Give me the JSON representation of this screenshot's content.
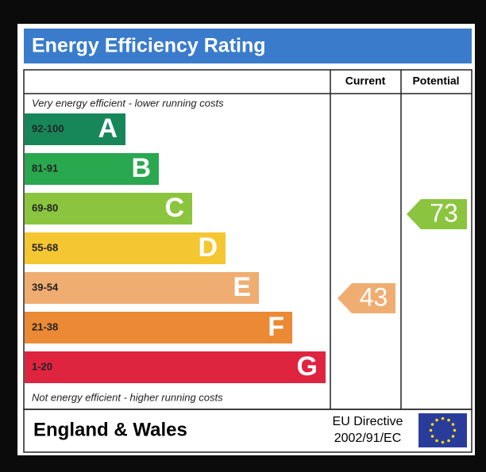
{
  "title": "Energy Efficiency Rating",
  "columns": [
    "Current",
    "Potential"
  ],
  "top_note": "Very energy efficient - lower running costs",
  "bottom_note": "Not energy efficient - higher running costs",
  "bands": [
    {
      "range": "92-100",
      "letter": "A",
      "color": "#17875a"
    },
    {
      "range": "81-91",
      "letter": "B",
      "color": "#2aa84f"
    },
    {
      "range": "69-80",
      "letter": "C",
      "color": "#8bc53f"
    },
    {
      "range": "55-68",
      "letter": "D",
      "color": "#f4c631"
    },
    {
      "range": "39-54",
      "letter": "E",
      "color": "#f0ad72"
    },
    {
      "range": "21-38",
      "letter": "F",
      "color": "#eb8934"
    },
    {
      "range": "1-20",
      "letter": "G",
      "color": "#df2440"
    }
  ],
  "current": {
    "value": 43,
    "color": "#f0ad72"
  },
  "potential": {
    "value": 73,
    "color": "#8bc53f"
  },
  "footer": {
    "region": "England & Wales",
    "directive": [
      "EU Directive",
      "2002/91/EC"
    ]
  }
}
